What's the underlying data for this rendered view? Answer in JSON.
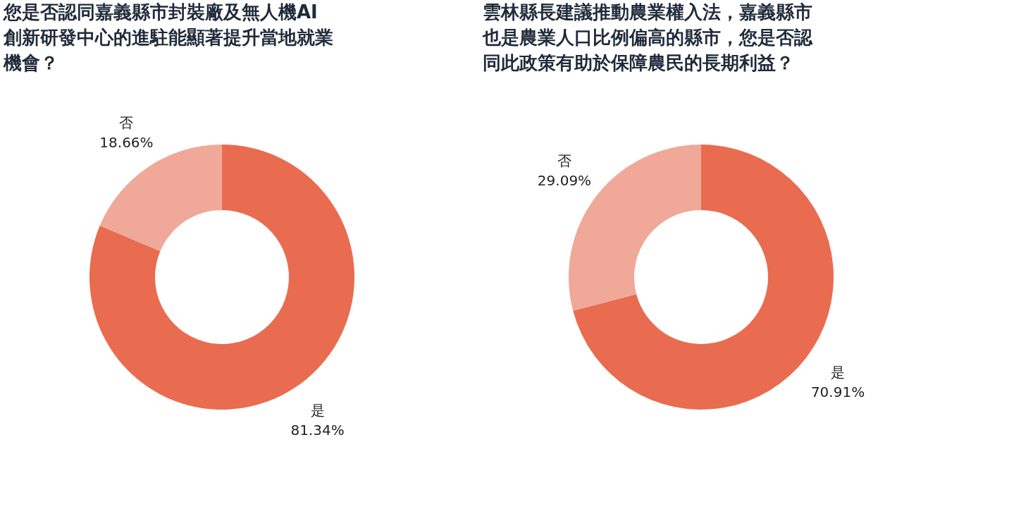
{
  "chart_data": [
    {
      "type": "donut",
      "title": "您是否認同嘉義縣市封裝廠及無人機AI創新研發中心的進駐能顯著提升當地就業機會？",
      "categories": [
        "是",
        "否"
      ],
      "values": [
        81.34,
        18.66
      ],
      "colors": [
        "#e96c50",
        "#f0a899"
      ],
      "value_labels": [
        "81.34%",
        "18.66%"
      ],
      "legend": false
    },
    {
      "type": "donut",
      "title": "雲林縣長建議推動農業權入法，嘉義縣市也是農業人口比例偏高的縣市，您是否認同此政策有助於保障農民的長期利益？",
      "categories": [
        "是",
        "否"
      ],
      "values": [
        70.91,
        29.09
      ],
      "colors": [
        "#e96c50",
        "#f0a899"
      ],
      "value_labels": [
        "70.91%",
        "29.09%"
      ],
      "legend": false
    }
  ]
}
